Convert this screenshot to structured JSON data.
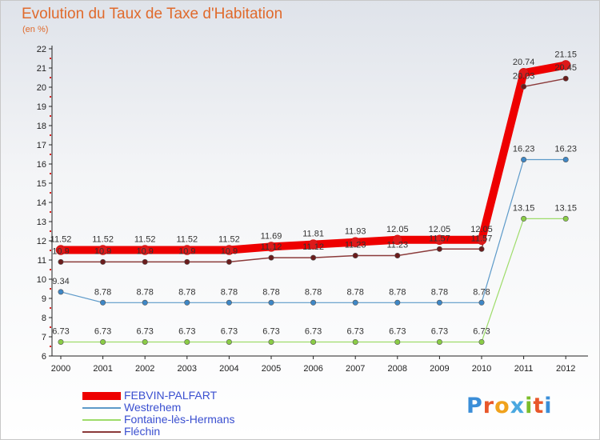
{
  "title": "Evolution du Taux de Taxe d'Habitation",
  "unit": "(en %)",
  "logo": {
    "letters": [
      {
        "ch": "P",
        "color": "#3b8ed8"
      },
      {
        "ch": "r",
        "color": "#e8572a"
      },
      {
        "ch": "o",
        "color": "#f0a21c"
      },
      {
        "ch": "x",
        "color": "#4aa8e0"
      },
      {
        "ch": "i",
        "color": "#7cbd2a"
      },
      {
        "ch": "t",
        "color": "#e8572a"
      },
      {
        "ch": "i",
        "color": "#3b8ed8"
      }
    ]
  },
  "chart_data": {
    "type": "line",
    "title": "Evolution du Taux de Taxe d'Habitation",
    "ylabel": "(en %)",
    "xlabel": "",
    "x": [
      "2000",
      "2001",
      "2002",
      "2003",
      "2004",
      "2005",
      "2006",
      "2007",
      "2008",
      "2009",
      "2010",
      "2011",
      "2012"
    ],
    "ylim": [
      6,
      22
    ],
    "yticks": [
      6,
      7,
      8,
      9,
      10,
      11,
      12,
      13,
      14,
      15,
      16,
      17,
      18,
      19,
      20,
      21,
      22
    ],
    "grid": false,
    "legend_position": "bottom-left",
    "series": [
      {
        "name": "FEBVIN-PALFART",
        "color": "#ee0000",
        "marker": "#dd1a1a",
        "width": 10,
        "values": [
          11.52,
          11.52,
          11.52,
          11.52,
          11.52,
          11.69,
          11.81,
          11.93,
          12.05,
          12.05,
          12.05,
          20.74,
          21.15
        ],
        "labels": [
          "11.52",
          "11.52",
          "11.52",
          "11.52",
          "11.52",
          "11.69",
          "11.81",
          "11.93",
          "12.05",
          "12.05",
          "12.05",
          "20.74",
          "21.15"
        ]
      },
      {
        "name": "Westrehem",
        "color": "#5d9ac9",
        "marker": "#3e87c6",
        "width": 1.2,
        "values": [
          9.34,
          8.78,
          8.78,
          8.78,
          8.78,
          8.78,
          8.78,
          8.78,
          8.78,
          8.78,
          8.78,
          16.23,
          16.23
        ],
        "labels": [
          "9.34",
          "8.78",
          "8.78",
          "8.78",
          "8.78",
          "8.78",
          "8.78",
          "8.78",
          "8.78",
          "8.78",
          "8.78",
          "16.23",
          "16.23"
        ]
      },
      {
        "name": "Fontaine-lès-Hermans",
        "color": "#9edc6a",
        "marker": "#8acc46",
        "width": 1.2,
        "values": [
          6.73,
          6.73,
          6.73,
          6.73,
          6.73,
          6.73,
          6.73,
          6.73,
          6.73,
          6.73,
          6.73,
          13.15,
          13.15
        ],
        "labels": [
          "6.73",
          "6.73",
          "6.73",
          "6.73",
          "6.73",
          "6.73",
          "6.73",
          "6.73",
          "6.73",
          "6.73",
          "6.73",
          "13.15",
          "13.15"
        ]
      },
      {
        "name": "Fléchin",
        "color": "#8b3a3a",
        "marker": "#6b1c1c",
        "width": 1.5,
        "values": [
          10.9,
          10.9,
          10.9,
          10.9,
          10.9,
          11.12,
          11.12,
          11.23,
          11.23,
          11.57,
          11.57,
          20.03,
          20.45
        ],
        "labels": [
          "10.9",
          "10.9",
          "10.9",
          "10.9",
          "10.9",
          "11.12",
          "11.12",
          "11.23",
          "11.23",
          "11.57",
          "11.57",
          "20.03",
          "20.45"
        ]
      }
    ]
  }
}
